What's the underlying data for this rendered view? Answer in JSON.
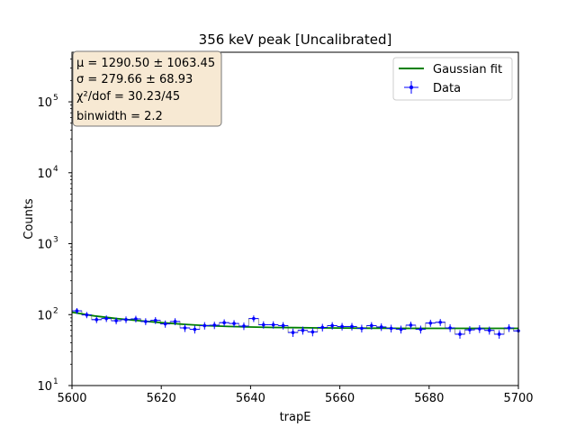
{
  "chart_data": {
    "type": "scatter",
    "title": "356 keV peak [Uncalibrated]",
    "xlabel": "trapE",
    "ylabel": "Counts",
    "xlim": [
      5600,
      5700
    ],
    "ylim": [
      10,
      500000
    ],
    "yscale": "log",
    "x_ticks": [
      "5600",
      "5620",
      "5640",
      "5660",
      "5680",
      "5700"
    ],
    "y_ticks": [
      {
        "base": "10",
        "exp": "1",
        "value": 10
      },
      {
        "base": "10",
        "exp": "2",
        "value": 100
      },
      {
        "base": "10",
        "exp": "3",
        "value": 1000
      },
      {
        "base": "10",
        "exp": "4",
        "value": 10000
      },
      {
        "base": "10",
        "exp": "5",
        "value": 100000
      }
    ],
    "grid": false,
    "legend_position": "top-right",
    "legend": {
      "fit_label": "Gaussian fit",
      "data_label": "Data"
    },
    "stats_box": {
      "mu": "μ = 1290.50 ± 1063.45",
      "sigma": "σ = 279.66 ± 68.93",
      "chi2": "χ²/dof = 30.23/45",
      "binwidth": "binwidth = 2.2"
    },
    "colors": {
      "data": "#0000ff",
      "fit": "#008000",
      "histogram": "#808080",
      "stats_box_fill": "#f7e9d3"
    },
    "bin_width": 2.2,
    "series": [
      {
        "name": "Data",
        "kind": "errorbar",
        "x": [
          5601.1,
          5603.3,
          5605.5,
          5607.7,
          5609.9,
          5612.1,
          5614.3,
          5616.5,
          5618.7,
          5620.9,
          5623.1,
          5625.3,
          5627.5,
          5629.7,
          5631.9,
          5634.1,
          5636.3,
          5638.5,
          5640.7,
          5642.9,
          5645.1,
          5647.3,
          5649.5,
          5651.7,
          5653.9,
          5656.1,
          5658.3,
          5660.5,
          5662.7,
          5664.9,
          5667.1,
          5669.3,
          5671.5,
          5673.7,
          5675.9,
          5678.1,
          5680.3,
          5682.5,
          5684.7,
          5686.9,
          5689.1,
          5691.3,
          5693.5,
          5695.7,
          5697.9,
          5700.0
        ],
        "y": [
          113,
          99,
          85,
          88,
          82,
          85,
          87,
          80,
          83,
          74,
          80,
          65,
          62,
          70,
          71,
          77,
          75,
          69,
          88,
          72,
          72,
          70,
          56,
          60,
          57,
          66,
          70,
          68,
          68,
          64,
          70,
          67,
          64,
          62,
          71,
          62,
          76,
          78,
          65,
          53,
          61,
          63,
          60,
          53,
          65,
          59
        ]
      },
      {
        "name": "Gaussian fit",
        "kind": "line",
        "x": [
          5600,
          5605,
          5610,
          5615,
          5620,
          5625,
          5630,
          5635,
          5640,
          5645,
          5650,
          5655,
          5660,
          5665,
          5670,
          5675,
          5680,
          5685,
          5690,
          5695,
          5700
        ],
        "y": [
          108,
          96,
          88,
          82,
          77,
          73,
          70,
          68,
          67,
          66,
          65.5,
          65,
          64.7,
          64.5,
          64.3,
          64.1,
          64,
          64,
          64,
          64,
          64
        ]
      }
    ]
  }
}
